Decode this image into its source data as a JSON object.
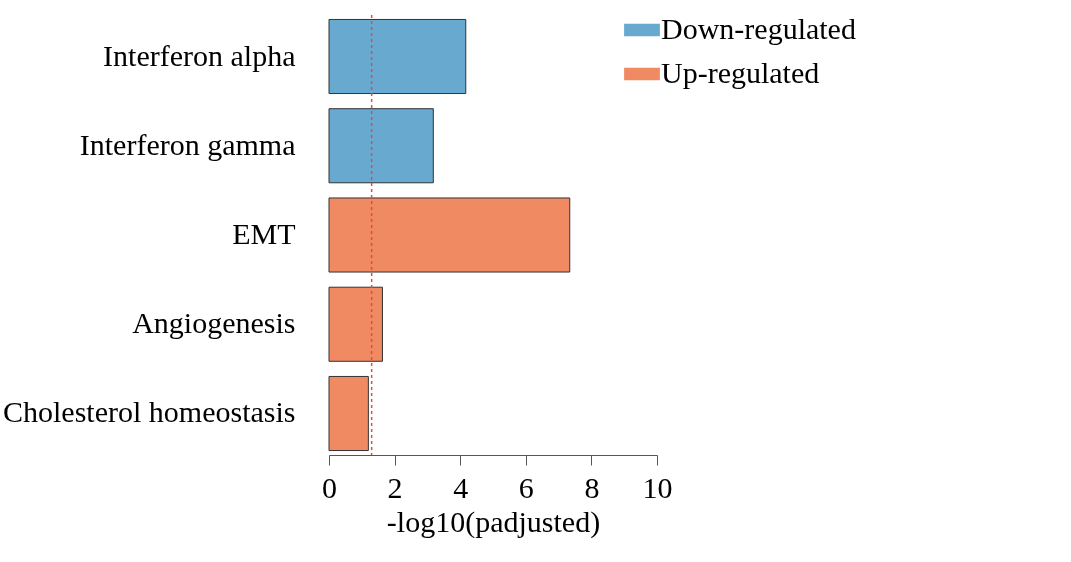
{
  "chart_data": {
    "type": "bar",
    "orientation": "horizontal",
    "categories": [
      "Interferon alpha",
      "Interferon gamma",
      "EMT",
      "Angiogenesis",
      "Cholesterol homeostasis"
    ],
    "series": [
      {
        "name": "Down-regulated",
        "color": "#67a9cf",
        "values": [
          4.17,
          3.18,
          null,
          null,
          null
        ]
      },
      {
        "name": "Up-regulated",
        "color": "#ef8a62",
        "values": [
          null,
          null,
          7.34,
          1.63,
          1.2
        ]
      }
    ],
    "xlabel": "-log10(padjusted)",
    "xlim": [
      0,
      10
    ],
    "xticks": [
      0,
      2,
      4,
      6,
      8,
      10
    ],
    "ref_lines": [
      {
        "axis": "x",
        "value": 1.3,
        "color": "#e8483f",
        "line_style": "dotted"
      }
    ],
    "grid": false,
    "legend": "top right"
  }
}
